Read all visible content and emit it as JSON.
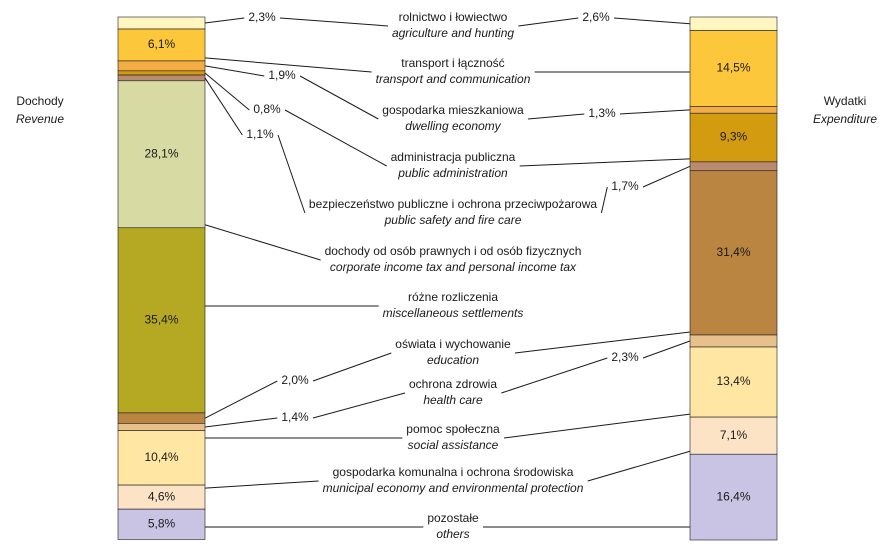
{
  "chart_data": {
    "type": "stacked-bar",
    "ylim": [
      0,
      100
    ],
    "categories": [
      "rolnictwo i łowiectwo",
      "transport i łączność",
      "gospodarka mieszkaniowa",
      "administracja publiczna",
      "bezpieczeństwo publiczne i ochrona przeciwpożarowa",
      "dochody od osób prawnych i od osób fizycznych",
      "różne rozliczenia",
      "oświata i wychowanie",
      "ochrona zdrowia",
      "pomoc społeczna",
      "gospodarka komunalna i ochrona środowiska",
      "pozostałe"
    ],
    "categories_en": [
      "agriculture and hunting",
      "transport and communication",
      "dwelling economy",
      "public administration",
      "public safety and fire care",
      "corporate income tax and personal income tax",
      "miscellaneous settlements",
      "education",
      "health care",
      "social assistance",
      "municipal economy and environmental protection",
      "others"
    ],
    "colors": [
      "#fff6c2",
      "#fcc73a",
      "#f4ad45",
      "#d39c10",
      "#b98b70",
      "#d7daa2",
      "#b5a823",
      "#ba8540",
      "#e8c08c",
      "#ffe6a2",
      "#fde3c6",
      "#c9c4e4"
    ],
    "series": [
      {
        "name": "Dochody",
        "name_en": "Revenue",
        "values": [
          2.3,
          6.1,
          1.9,
          0.8,
          1.1,
          28.1,
          35.4,
          2.0,
          1.4,
          10.4,
          4.6,
          5.8
        ],
        "value_labels": [
          "2,3%",
          "6,1%",
          "1,9%",
          "0,8%",
          "1,1%",
          "28,1%",
          "35,4%",
          "2,0%",
          "1,4%",
          "10,4%",
          "4,6%",
          "5,8%"
        ]
      },
      {
        "name": "Wydatki",
        "name_en": "Expenditure",
        "values": [
          2.6,
          14.5,
          1.3,
          9.3,
          1.7,
          null,
          null,
          31.4,
          2.3,
          13.4,
          7.1,
          16.4
        ],
        "value_labels": [
          "2,6%",
          "14,5%",
          "1,3%",
          "9,3%",
          "1,7%",
          null,
          null,
          "31,4%",
          "2,3%",
          "13,4%",
          "7,1%",
          "16,4%"
        ]
      }
    ]
  }
}
